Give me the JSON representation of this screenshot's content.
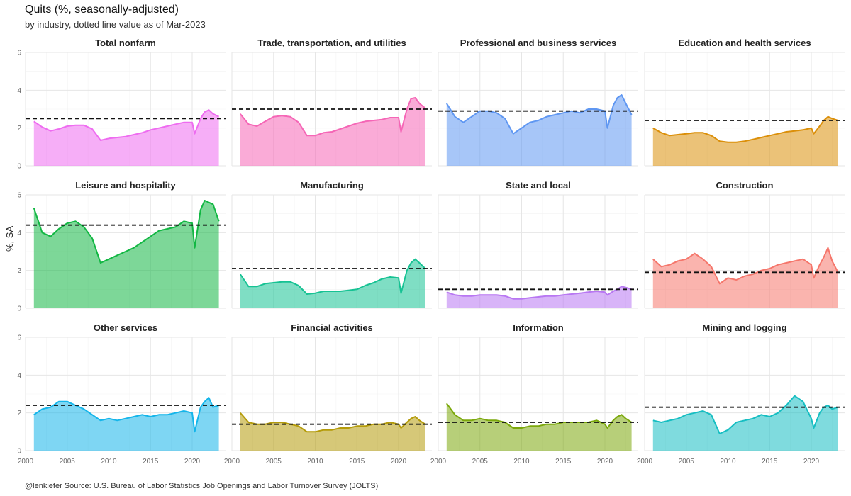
{
  "title": "Quits (%, seasonally-adjusted)",
  "subtitle": "by industry, dotted line value as of Mar-2023",
  "caption": "@lenkiefer Source: U.S. Bureau of Labor Statistics Job Openings and Labor Turnover Survey (JOLTS)",
  "chart_data": {
    "type": "area",
    "ylabel": "%, SA",
    "xlim": [
      2000,
      2024
    ],
    "ylim": [
      0,
      6
    ],
    "x_ticks": [
      2000,
      2005,
      2010,
      2015,
      2020
    ],
    "y_ticks": [
      0,
      2,
      4,
      6
    ],
    "grid": true,
    "panels": [
      {
        "name": "Total nonfarm",
        "color": "#ee6bf0",
        "ref": 2.5,
        "x": [
          2001,
          2002,
          2003,
          2004,
          2005,
          2006,
          2007,
          2008,
          2009,
          2010,
          2011,
          2012,
          2013,
          2014,
          2015,
          2016,
          2017,
          2018,
          2019,
          2020,
          2020.3,
          2021,
          2021.5,
          2022,
          2022.5,
          2023.2
        ],
        "y": [
          2.35,
          2.05,
          1.85,
          1.95,
          2.1,
          2.15,
          2.15,
          1.95,
          1.35,
          1.45,
          1.5,
          1.55,
          1.65,
          1.75,
          1.9,
          2.0,
          2.1,
          2.2,
          2.3,
          2.3,
          1.7,
          2.5,
          2.85,
          2.95,
          2.75,
          2.6
        ]
      },
      {
        "name": "Trade, transportation, and utilities",
        "color": "#f566b6",
        "ref": 3.0,
        "x": [
          2001,
          2002,
          2003,
          2004,
          2005,
          2006,
          2007,
          2008,
          2009,
          2010,
          2011,
          2012,
          2013,
          2014,
          2015,
          2016,
          2017,
          2018,
          2019,
          2020,
          2020.3,
          2021,
          2021.5,
          2022,
          2022.5,
          2023.2
        ],
        "y": [
          2.75,
          2.2,
          2.1,
          2.35,
          2.6,
          2.65,
          2.6,
          2.3,
          1.6,
          1.6,
          1.75,
          1.8,
          1.95,
          2.1,
          2.25,
          2.35,
          2.4,
          2.45,
          2.55,
          2.55,
          1.8,
          3.0,
          3.55,
          3.6,
          3.3,
          3.05
        ]
      },
      {
        "name": "Professional and business services",
        "color": "#5f97f2",
        "ref": 2.9,
        "x": [
          2001,
          2002,
          2003,
          2004,
          2005,
          2006,
          2007,
          2008,
          2009,
          2010,
          2011,
          2012,
          2013,
          2014,
          2015,
          2016,
          2017,
          2018,
          2019,
          2020,
          2020.3,
          2021,
          2021.5,
          2022,
          2022.5,
          2023.2
        ],
        "y": [
          3.3,
          2.6,
          2.3,
          2.6,
          2.9,
          2.9,
          2.8,
          2.5,
          1.7,
          2.0,
          2.3,
          2.4,
          2.6,
          2.7,
          2.8,
          2.9,
          2.8,
          3.0,
          3.0,
          2.9,
          2.0,
          3.2,
          3.6,
          3.75,
          3.3,
          2.7
        ]
      },
      {
        "name": "Education and health services",
        "color": "#db8f09",
        "ref": 2.4,
        "x": [
          2001,
          2002,
          2003,
          2004,
          2005,
          2006,
          2007,
          2008,
          2009,
          2010,
          2011,
          2012,
          2013,
          2014,
          2015,
          2016,
          2017,
          2018,
          2019,
          2020,
          2020.3,
          2021,
          2021.5,
          2022,
          2022.5,
          2023.2
        ],
        "y": [
          2.0,
          1.75,
          1.6,
          1.65,
          1.7,
          1.75,
          1.75,
          1.6,
          1.3,
          1.25,
          1.25,
          1.3,
          1.4,
          1.5,
          1.6,
          1.7,
          1.8,
          1.85,
          1.9,
          2.0,
          1.7,
          2.1,
          2.4,
          2.6,
          2.5,
          2.4
        ]
      },
      {
        "name": "Leisure and hospitality",
        "color": "#12b743",
        "ref": 4.4,
        "x": [
          2001,
          2002,
          2003,
          2004,
          2005,
          2006,
          2007,
          2008,
          2009,
          2010,
          2011,
          2012,
          2013,
          2014,
          2015,
          2016,
          2017,
          2018,
          2019,
          2020,
          2020.3,
          2021,
          2021.5,
          2022,
          2022.5,
          2023.2
        ],
        "y": [
          5.3,
          4.0,
          3.8,
          4.2,
          4.5,
          4.6,
          4.3,
          3.7,
          2.4,
          2.6,
          2.8,
          3.0,
          3.2,
          3.5,
          3.8,
          4.1,
          4.2,
          4.3,
          4.6,
          4.5,
          3.2,
          5.2,
          5.7,
          5.6,
          5.5,
          4.6
        ]
      },
      {
        "name": "Manufacturing",
        "color": "#16c293",
        "ref": 2.1,
        "x": [
          2001,
          2002,
          2003,
          2004,
          2005,
          2006,
          2007,
          2008,
          2009,
          2010,
          2011,
          2012,
          2013,
          2014,
          2015,
          2016,
          2017,
          2018,
          2019,
          2020,
          2020.3,
          2021,
          2021.5,
          2022,
          2022.5,
          2023.2
        ],
        "y": [
          1.8,
          1.15,
          1.15,
          1.3,
          1.35,
          1.4,
          1.4,
          1.2,
          0.75,
          0.8,
          0.9,
          0.9,
          0.9,
          0.95,
          1.0,
          1.2,
          1.35,
          1.55,
          1.65,
          1.6,
          0.8,
          2.0,
          2.4,
          2.6,
          2.4,
          2.1
        ]
      },
      {
        "name": "State and local",
        "color": "#b877f2",
        "ref": 1.0,
        "x": [
          2001,
          2002,
          2003,
          2004,
          2005,
          2006,
          2007,
          2008,
          2009,
          2010,
          2011,
          2012,
          2013,
          2014,
          2015,
          2016,
          2017,
          2018,
          2019,
          2020,
          2020.3,
          2021,
          2021.5,
          2022,
          2022.5,
          2023.2
        ],
        "y": [
          0.85,
          0.7,
          0.65,
          0.65,
          0.7,
          0.7,
          0.7,
          0.65,
          0.5,
          0.5,
          0.55,
          0.6,
          0.65,
          0.65,
          0.7,
          0.75,
          0.8,
          0.85,
          0.9,
          0.85,
          0.7,
          0.9,
          1.0,
          1.15,
          1.1,
          1.0
        ]
      },
      {
        "name": "Construction",
        "color": "#f5766b",
        "ref": 1.9,
        "x": [
          2001,
          2002,
          2003,
          2004,
          2005,
          2006,
          2007,
          2008,
          2009,
          2010,
          2011,
          2012,
          2013,
          2014,
          2015,
          2016,
          2017,
          2018,
          2019,
          2020,
          2020.3,
          2021,
          2021.5,
          2022,
          2022.5,
          2023.2
        ],
        "y": [
          2.6,
          2.2,
          2.3,
          2.5,
          2.6,
          2.9,
          2.6,
          2.2,
          1.3,
          1.6,
          1.5,
          1.7,
          1.8,
          2.0,
          2.1,
          2.3,
          2.4,
          2.5,
          2.6,
          2.3,
          1.6,
          2.3,
          2.7,
          3.2,
          2.5,
          1.9
        ]
      },
      {
        "name": "Other services",
        "color": "#14b5ea",
        "ref": 2.4,
        "x": [
          2001,
          2002,
          2003,
          2004,
          2005,
          2006,
          2007,
          2008,
          2009,
          2010,
          2011,
          2012,
          2013,
          2014,
          2015,
          2016,
          2017,
          2018,
          2019,
          2020,
          2020.3,
          2021,
          2021.5,
          2022,
          2022.5,
          2023.2
        ],
        "y": [
          1.9,
          2.2,
          2.3,
          2.6,
          2.6,
          2.4,
          2.2,
          1.9,
          1.6,
          1.7,
          1.6,
          1.7,
          1.8,
          1.9,
          1.8,
          1.9,
          1.9,
          2.0,
          2.1,
          2.0,
          1.0,
          2.3,
          2.6,
          2.8,
          2.3,
          2.4
        ]
      },
      {
        "name": "Financial activities",
        "color": "#b49b09",
        "ref": 1.4,
        "x": [
          2001,
          2002,
          2003,
          2004,
          2005,
          2006,
          2007,
          2008,
          2009,
          2010,
          2011,
          2012,
          2013,
          2014,
          2015,
          2016,
          2017,
          2018,
          2019,
          2020,
          2020.3,
          2021,
          2021.5,
          2022,
          2022.5,
          2023.2
        ],
        "y": [
          2.0,
          1.5,
          1.4,
          1.4,
          1.5,
          1.5,
          1.4,
          1.3,
          1.0,
          1.0,
          1.1,
          1.1,
          1.2,
          1.2,
          1.3,
          1.3,
          1.4,
          1.4,
          1.5,
          1.4,
          1.2,
          1.5,
          1.7,
          1.8,
          1.6,
          1.4
        ]
      },
      {
        "name": "Information",
        "color": "#7ba80b",
        "ref": 1.5,
        "x": [
          2001,
          2002,
          2003,
          2004,
          2005,
          2006,
          2007,
          2008,
          2009,
          2010,
          2011,
          2012,
          2013,
          2014,
          2015,
          2016,
          2017,
          2018,
          2019,
          2020,
          2020.3,
          2021,
          2021.5,
          2022,
          2022.5,
          2023.2
        ],
        "y": [
          2.5,
          1.9,
          1.6,
          1.6,
          1.7,
          1.6,
          1.6,
          1.5,
          1.2,
          1.2,
          1.3,
          1.3,
          1.4,
          1.4,
          1.5,
          1.5,
          1.5,
          1.5,
          1.6,
          1.4,
          1.2,
          1.6,
          1.8,
          1.9,
          1.7,
          1.5
        ]
      },
      {
        "name": "Mining and logging",
        "color": "#16bec2",
        "ref": 2.3,
        "x": [
          2001,
          2002,
          2003,
          2004,
          2005,
          2006,
          2007,
          2008,
          2009,
          2010,
          2011,
          2012,
          2013,
          2014,
          2015,
          2016,
          2017,
          2018,
          2019,
          2020,
          2020.3,
          2021,
          2021.5,
          2022,
          2022.5,
          2023.2
        ],
        "y": [
          1.6,
          1.5,
          1.6,
          1.7,
          1.9,
          2.0,
          2.1,
          1.9,
          0.9,
          1.1,
          1.5,
          1.6,
          1.7,
          1.9,
          1.8,
          2.0,
          2.4,
          2.9,
          2.6,
          1.7,
          1.2,
          2.0,
          2.3,
          2.4,
          2.2,
          2.3
        ]
      }
    ]
  }
}
